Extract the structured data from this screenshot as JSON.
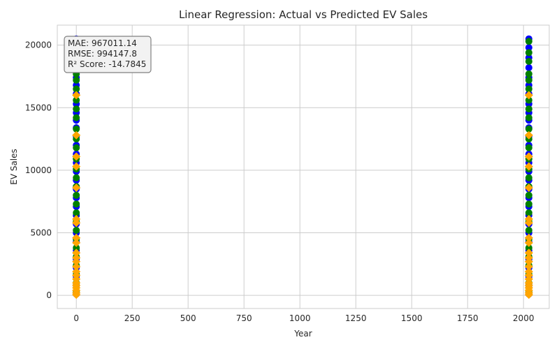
{
  "chart_data": {
    "type": "scatter",
    "title": "Linear Regression: Actual vs Predicted EV Sales",
    "xlabel": "Year",
    "ylabel": "EV Sales",
    "xlim": [
      -85,
      2115
    ],
    "ylim": [
      -1050,
      21600
    ],
    "xticks": [
      0,
      250,
      500,
      750,
      1000,
      1250,
      1500,
      1750,
      2000
    ],
    "yticks": [
      0,
      5000,
      10000,
      15000,
      20000
    ],
    "grid": true,
    "colors": {
      "blue": "#0000ff",
      "green": "#008000",
      "orange": "#ffa500",
      "grid": "#cccccc",
      "box_bg": "#f2f2f2",
      "box_edge": "#808080"
    },
    "series": [
      {
        "color": "blue",
        "marker": "circle",
        "points": [
          [
            0,
            20500
          ],
          [
            0,
            19800
          ],
          [
            0,
            19000
          ],
          [
            0,
            18200
          ],
          [
            0,
            17400
          ],
          [
            0,
            16800
          ],
          [
            0,
            16100
          ],
          [
            0,
            15300
          ],
          [
            0,
            14600
          ],
          [
            0,
            14000
          ],
          [
            0,
            13400
          ],
          [
            0,
            12700
          ],
          [
            0,
            12000
          ],
          [
            0,
            11300
          ],
          [
            0,
            10600
          ],
          [
            0,
            9900
          ],
          [
            0,
            9200
          ],
          [
            0,
            8500
          ],
          [
            0,
            7800
          ],
          [
            0,
            7100
          ],
          [
            0,
            6400
          ],
          [
            0,
            5700
          ],
          [
            0,
            5000
          ],
          [
            0,
            4300
          ],
          [
            0,
            3600
          ],
          [
            0,
            2900
          ],
          [
            0,
            2200
          ],
          [
            0,
            1500
          ],
          [
            0,
            800
          ],
          [
            0,
            100
          ],
          [
            2024,
            20500
          ],
          [
            2024,
            19800
          ],
          [
            2024,
            19000
          ],
          [
            2024,
            18200
          ],
          [
            2024,
            17400
          ],
          [
            2024,
            16800
          ],
          [
            2024,
            16100
          ],
          [
            2024,
            15300
          ],
          [
            2024,
            14600
          ],
          [
            2024,
            14000
          ],
          [
            2024,
            13400
          ],
          [
            2024,
            12700
          ],
          [
            2024,
            12000
          ],
          [
            2024,
            11300
          ],
          [
            2024,
            10600
          ],
          [
            2024,
            9900
          ],
          [
            2024,
            9200
          ],
          [
            2024,
            8500
          ],
          [
            2024,
            7800
          ],
          [
            2024,
            7100
          ],
          [
            2024,
            6400
          ],
          [
            2024,
            5700
          ],
          [
            2024,
            5000
          ],
          [
            2024,
            4300
          ],
          [
            2024,
            3600
          ],
          [
            2024,
            2900
          ],
          [
            2024,
            2200
          ],
          [
            2024,
            1500
          ],
          [
            2024,
            800
          ],
          [
            2024,
            100
          ]
        ]
      },
      {
        "color": "green",
        "marker": "circle",
        "points": [
          [
            0,
            20300
          ],
          [
            0,
            19400
          ],
          [
            0,
            18700
          ],
          [
            0,
            17700
          ],
          [
            0,
            17200
          ],
          [
            0,
            16500
          ],
          [
            0,
            15600
          ],
          [
            0,
            14900
          ],
          [
            0,
            14200
          ],
          [
            0,
            13300
          ],
          [
            0,
            12500
          ],
          [
            0,
            11800
          ],
          [
            0,
            10900
          ],
          [
            0,
            10100
          ],
          [
            0,
            9400
          ],
          [
            0,
            8700
          ],
          [
            0,
            8000
          ],
          [
            0,
            7300
          ],
          [
            0,
            6600
          ],
          [
            0,
            5900
          ],
          [
            0,
            5200
          ],
          [
            0,
            4500
          ],
          [
            0,
            3800
          ],
          [
            0,
            3100
          ],
          [
            0,
            2400
          ],
          [
            0,
            1700
          ],
          [
            0,
            1000
          ],
          [
            0,
            300
          ],
          [
            2024,
            20300
          ],
          [
            2024,
            19400
          ],
          [
            2024,
            18700
          ],
          [
            2024,
            17700
          ],
          [
            2024,
            17200
          ],
          [
            2024,
            16500
          ],
          [
            2024,
            15600
          ],
          [
            2024,
            14900
          ],
          [
            2024,
            14200
          ],
          [
            2024,
            13300
          ],
          [
            2024,
            12500
          ],
          [
            2024,
            11800
          ],
          [
            2024,
            10900
          ],
          [
            2024,
            10100
          ],
          [
            2024,
            9400
          ],
          [
            2024,
            8700
          ],
          [
            2024,
            8000
          ],
          [
            2024,
            7300
          ],
          [
            2024,
            6600
          ],
          [
            2024,
            5900
          ],
          [
            2024,
            5200
          ],
          [
            2024,
            4500
          ],
          [
            2024,
            3800
          ],
          [
            2024,
            3100
          ],
          [
            2024,
            2400
          ],
          [
            2024,
            1700
          ],
          [
            2024,
            1000
          ],
          [
            2024,
            300
          ]
        ]
      },
      {
        "color": "orange",
        "marker": "diamond",
        "points": [
          [
            0,
            16000
          ],
          [
            0,
            12800
          ],
          [
            0,
            11100
          ],
          [
            0,
            10300
          ],
          [
            0,
            8600
          ],
          [
            0,
            6100
          ],
          [
            0,
            5800
          ],
          [
            0,
            4600
          ],
          [
            0,
            4200
          ],
          [
            0,
            3400
          ],
          [
            0,
            3000
          ],
          [
            0,
            2700
          ],
          [
            0,
            2300
          ],
          [
            0,
            1900
          ],
          [
            0,
            1600
          ],
          [
            0,
            1300
          ],
          [
            0,
            1000
          ],
          [
            0,
            800
          ],
          [
            0,
            600
          ],
          [
            0,
            400
          ],
          [
            0,
            200
          ],
          [
            0,
            50
          ],
          [
            2024,
            16000
          ],
          [
            2024,
            12800
          ],
          [
            2024,
            11100
          ],
          [
            2024,
            10300
          ],
          [
            2024,
            8600
          ],
          [
            2024,
            6100
          ],
          [
            2024,
            5800
          ],
          [
            2024,
            4600
          ],
          [
            2024,
            4200
          ],
          [
            2024,
            3400
          ],
          [
            2024,
            3000
          ],
          [
            2024,
            2700
          ],
          [
            2024,
            2300
          ],
          [
            2024,
            1900
          ],
          [
            2024,
            1600
          ],
          [
            2024,
            1300
          ],
          [
            2024,
            1000
          ],
          [
            2024,
            800
          ],
          [
            2024,
            600
          ],
          [
            2024,
            400
          ],
          [
            2024,
            200
          ],
          [
            2024,
            50
          ]
        ]
      }
    ],
    "metrics_box": {
      "placement": "top-left",
      "lines": [
        "MAE: 967011.14",
        "RMSE: 994147.8",
        "R² Score: -14.7845"
      ]
    }
  }
}
